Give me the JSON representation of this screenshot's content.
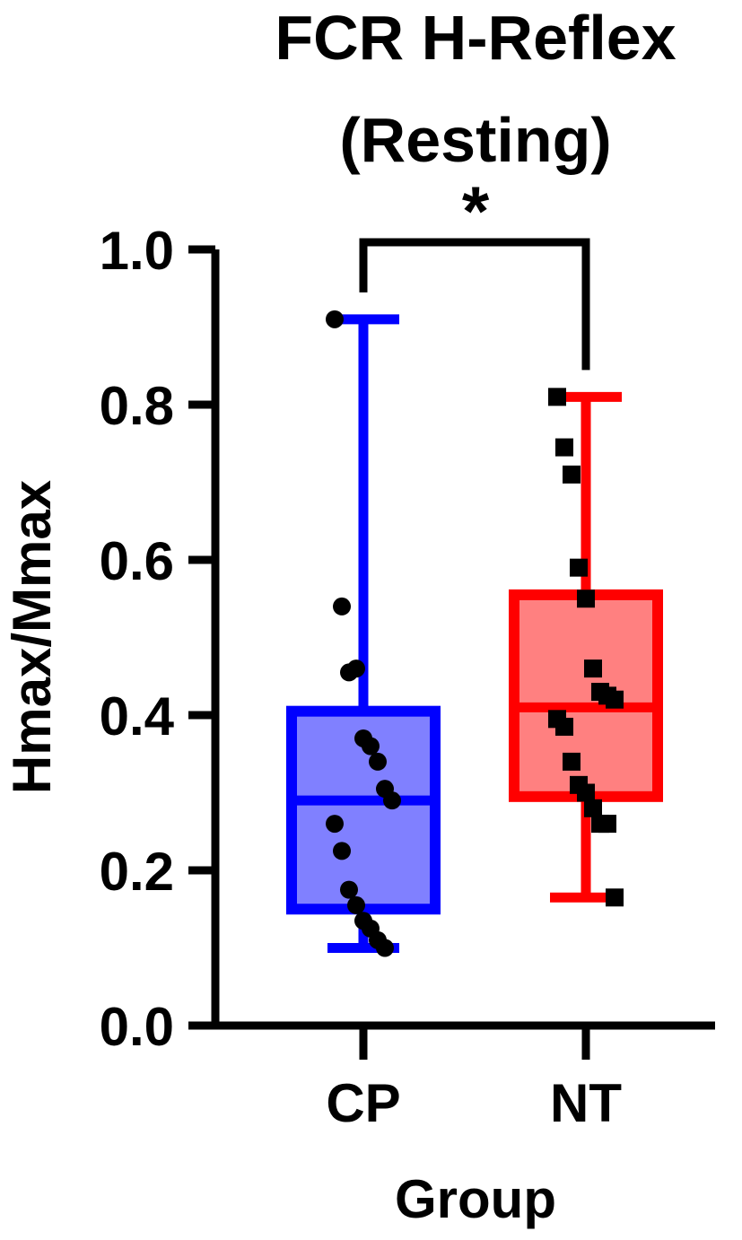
{
  "chart_data": {
    "type": "box",
    "title_line1": "FCR H-Reflex",
    "title_line2": "(Resting)",
    "significance": "*",
    "xlabel": "Group",
    "ylabel": "Hmax/Mmax",
    "ylim": [
      0,
      1.0
    ],
    "yticks": [
      "0.0",
      "0.2",
      "0.4",
      "0.6",
      "0.8",
      "1.0"
    ],
    "categories": [
      "CP",
      "NT"
    ],
    "groups": [
      {
        "name": "CP",
        "marker": "circle",
        "stroke_color": "#0000ff",
        "fill_color": "#8080ff",
        "whisker_low": 0.1,
        "q1": 0.15,
        "median": 0.29,
        "q3": 0.405,
        "whisker_high": 0.91,
        "points": [
          0.91,
          0.54,
          0.455,
          0.46,
          0.37,
          0.36,
          0.34,
          0.305,
          0.29,
          0.26,
          0.225,
          0.175,
          0.155,
          0.135,
          0.125,
          0.11,
          0.1
        ]
      },
      {
        "name": "NT",
        "marker": "square",
        "stroke_color": "#ff0000",
        "fill_color": "#ff8080",
        "whisker_low": 0.165,
        "q1": 0.295,
        "median": 0.41,
        "q3": 0.555,
        "whisker_high": 0.81,
        "points": [
          0.81,
          0.745,
          0.71,
          0.59,
          0.55,
          0.46,
          0.43,
          0.425,
          0.42,
          0.395,
          0.385,
          0.34,
          0.31,
          0.3,
          0.28,
          0.26,
          0.26,
          0.165
        ]
      }
    ]
  }
}
